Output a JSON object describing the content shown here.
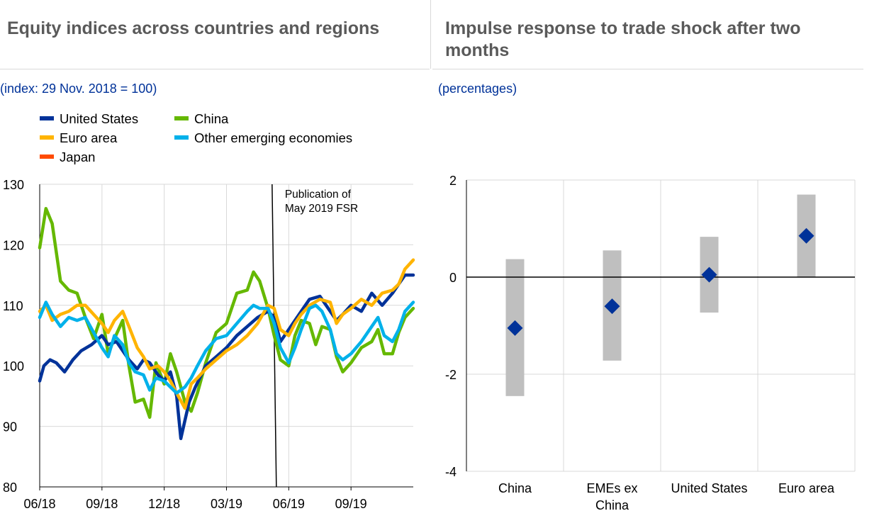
{
  "left_panel": {
    "title": "Equity indices across countries and regions",
    "unit": "(index: 29 Nov. 2018 = 100)",
    "legend": [
      {
        "label": "United States",
        "color": "#003299"
      },
      {
        "label": "Euro area",
        "color": "#ffb400"
      },
      {
        "label": "Japan",
        "color": "#ff4b00"
      },
      {
        "label": "China",
        "color": "#65b800"
      },
      {
        "label": "Other emerging economies",
        "color": "#00b1ea"
      }
    ]
  },
  "right_panel": {
    "title": "Impulse response to trade shock after two months",
    "unit": "(percentages)"
  },
  "chart_data": [
    {
      "type": "line",
      "title": "Equity indices across countries and regions",
      "ylabel": "(index: 29 Nov. 2018 = 100)",
      "ylim": [
        80,
        130
      ],
      "yticks": [
        80,
        90,
        100,
        110,
        120,
        130
      ],
      "xlim": [
        0,
        18
      ],
      "xticks": [
        0,
        3,
        6,
        9,
        12,
        15
      ],
      "xtick_labels": [
        "06/18",
        "09/18",
        "12/18",
        "03/19",
        "06/19",
        "09/19"
      ],
      "annotation": {
        "text": "Publication of May 2019 FSR",
        "x": 11.3
      },
      "series": [
        {
          "name": "United States",
          "color": "#003299",
          "x": [
            0,
            0.2,
            0.5,
            0.8,
            1.2,
            1.6,
            2.0,
            2.5,
            3.0,
            3.3,
            3.7,
            4.0,
            4.3,
            4.7,
            5.0,
            5.3,
            5.7,
            6.0,
            6.3,
            6.6,
            6.8,
            7.0,
            7.2,
            7.5,
            8.0,
            8.5,
            9.0,
            9.5,
            10.0,
            10.5,
            11.0,
            11.3,
            11.6,
            12.0,
            12.3,
            12.6,
            13.0,
            13.5,
            14.0,
            14.3,
            14.6,
            15.0,
            15.5,
            16.0,
            16.5,
            17.0,
            17.3,
            17.6,
            18.0
          ],
          "values": [
            97.5,
            100,
            101,
            100.5,
            99,
            101,
            102.5,
            103.5,
            105,
            103.5,
            104,
            102.5,
            101,
            99.5,
            101,
            100.5,
            98.5,
            97.5,
            99,
            95,
            88,
            91,
            94,
            96.5,
            100,
            101.5,
            103,
            105,
            106.5,
            108,
            109,
            108,
            104,
            106,
            107.5,
            109,
            111,
            111.5,
            109,
            107.5,
            108.5,
            110,
            109,
            112,
            110,
            112,
            113.5,
            115,
            115
          ]
        },
        {
          "name": "Euro area",
          "color": "#ffb400",
          "x": [
            0,
            0.3,
            0.6,
            1.0,
            1.4,
            1.8,
            2.2,
            2.6,
            3.0,
            3.3,
            3.6,
            4.0,
            4.3,
            4.7,
            5.0,
            5.3,
            5.7,
            6.0,
            6.3,
            6.6,
            7.0,
            7.3,
            7.6,
            8.0,
            8.5,
            9.0,
            9.5,
            10.0,
            10.5,
            11.0,
            11.3,
            11.6,
            12.0,
            12.3,
            12.6,
            13.0,
            13.5,
            14.0,
            14.3,
            14.6,
            15.0,
            15.5,
            16.0,
            16.5,
            17.0,
            17.3,
            17.6,
            18.0
          ],
          "values": [
            109,
            110,
            107.5,
            108.5,
            109,
            110,
            110,
            108.5,
            107,
            105.5,
            107.5,
            109,
            106.5,
            103,
            101.5,
            99.5,
            100,
            99,
            97.5,
            95.5,
            93,
            97,
            98,
            99.5,
            101,
            102.5,
            103.5,
            105,
            107,
            110,
            109.5,
            106,
            105,
            107,
            108.5,
            110,
            111,
            110.5,
            107,
            108.5,
            109.5,
            111,
            110,
            112,
            112.5,
            113.5,
            116,
            117.5
          ]
        },
        {
          "name": "China",
          "color": "#65b800",
          "x": [
            0,
            0.3,
            0.6,
            1.0,
            1.4,
            1.8,
            2.2,
            2.6,
            3.0,
            3.3,
            3.6,
            4.0,
            4.3,
            4.6,
            5.0,
            5.3,
            5.6,
            6.0,
            6.3,
            6.6,
            7.0,
            7.3,
            7.6,
            8.0,
            8.5,
            9.0,
            9.5,
            10.0,
            10.3,
            10.6,
            11.0,
            11.3,
            11.6,
            12.0,
            12.3,
            12.6,
            13.0,
            13.3,
            13.6,
            14.0,
            14.3,
            14.6,
            15.0,
            15.5,
            16.0,
            16.3,
            16.6,
            17.0,
            17.3,
            17.6,
            18.0
          ],
          "values": [
            119.5,
            126,
            123.5,
            114,
            112.5,
            112,
            108,
            104.5,
            108.5,
            102,
            104.5,
            107.5,
            100,
            94,
            94.5,
            91.5,
            100.5,
            97,
            102,
            99,
            94,
            92.5,
            95.5,
            100.5,
            105.5,
            107,
            112,
            112.5,
            115.5,
            114,
            109.5,
            105,
            101,
            100,
            105,
            107.5,
            107,
            103.5,
            106.5,
            106,
            101.5,
            99,
            100.5,
            103,
            104,
            106,
            102,
            102,
            105.5,
            108,
            109.5
          ]
        },
        {
          "name": "Other emerging economies",
          "color": "#00b1ea",
          "x": [
            0,
            0.3,
            0.6,
            1.0,
            1.4,
            1.8,
            2.2,
            2.6,
            3.0,
            3.3,
            3.6,
            4.0,
            4.3,
            4.6,
            5.0,
            5.3,
            5.6,
            6.0,
            6.3,
            6.6,
            7.0,
            7.3,
            7.6,
            8.0,
            8.5,
            9.0,
            9.5,
            10.0,
            10.3,
            10.6,
            11.0,
            11.3,
            11.6,
            12.0,
            12.3,
            12.6,
            13.0,
            13.3,
            13.6,
            14.0,
            14.3,
            14.6,
            15.0,
            15.5,
            16.0,
            16.3,
            16.6,
            17.0,
            17.3,
            17.6,
            18.0
          ],
          "values": [
            108,
            110.5,
            108.5,
            106.5,
            108,
            107.5,
            108,
            105.5,
            103,
            101.5,
            105,
            103.5,
            100.5,
            99,
            98.5,
            96,
            98,
            97.5,
            96.5,
            95.5,
            96.5,
            98,
            100,
            102.5,
            104.5,
            105,
            107,
            109,
            110,
            109.5,
            109.5,
            107,
            103,
            100.5,
            103,
            106,
            109.5,
            110,
            109,
            106,
            102,
            101,
            102,
            104,
            106.5,
            108,
            105,
            104,
            106,
            109,
            110.5
          ]
        }
      ]
    },
    {
      "type": "scatter",
      "title": "Impulse response to trade shock after two months",
      "ylabel": "(percentages)",
      "ylim": [
        -4,
        2
      ],
      "yticks": [
        -4,
        -2,
        0,
        2
      ],
      "categories": [
        "China",
        "EMEs ex China",
        "United States",
        "Euro area"
      ],
      "category_lines": [
        [
          "China"
        ],
        [
          "EMEs ex",
          "China"
        ],
        [
          "United States"
        ],
        [
          "Euro area"
        ]
      ],
      "values": [
        -1.05,
        -0.6,
        0.05,
        0.85
      ],
      "intervals": [
        [
          -2.45,
          0.37
        ],
        [
          -1.72,
          0.55
        ],
        [
          -0.73,
          0.83
        ],
        [
          0,
          1.7
        ]
      ]
    }
  ]
}
